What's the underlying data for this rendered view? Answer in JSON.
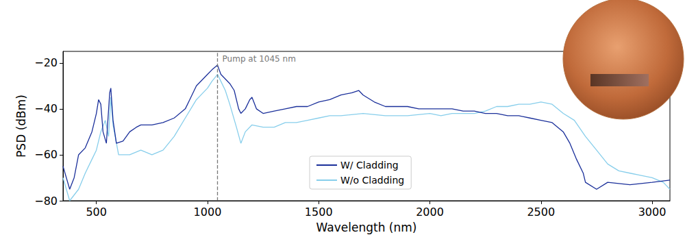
{
  "chart_data": {
    "type": "line",
    "x_label": "Wavelength (nm)",
    "y_label": "PSD (dBm)",
    "xlim": [
      350,
      3080
    ],
    "xticks": [
      500,
      1000,
      1500,
      2000,
      2500,
      3000
    ],
    "ylim": [
      -80,
      -15
    ],
    "yticks": [
      -80,
      -60,
      -40,
      -20
    ],
    "grid": false,
    "legend": "lower center",
    "annotations": [
      {
        "x": 1045,
        "text": "Pump at 1045 nm",
        "line_style": "dashed",
        "color": "#777777"
      }
    ],
    "series": [
      {
        "name": "W/ Cladding",
        "color": "#1a2f9a",
        "x": [
          350,
          380,
          400,
          420,
          450,
          480,
          500,
          510,
          520,
          530,
          545,
          560,
          565,
          575,
          590,
          620,
          650,
          680,
          700,
          750,
          800,
          850,
          900,
          920,
          950,
          980,
          1000,
          1020,
          1045,
          1060,
          1080,
          1100,
          1120,
          1140,
          1150,
          1170,
          1190,
          1200,
          1220,
          1250,
          1300,
          1350,
          1400,
          1450,
          1500,
          1550,
          1600,
          1650,
          1680,
          1700,
          1750,
          1800,
          1850,
          1900,
          1950,
          2000,
          2050,
          2100,
          2150,
          2200,
          2250,
          2300,
          2350,
          2400,
          2450,
          2500,
          2550,
          2600,
          2630,
          2660,
          2690,
          2700,
          2750,
          2800,
          2900,
          3000,
          3080
        ],
        "values": [
          -65,
          -75,
          -70,
          -60,
          -57,
          -50,
          -42,
          -36,
          -38,
          -50,
          -55,
          -33,
          -31,
          -45,
          -55,
          -54,
          -50,
          -48,
          -47,
          -47,
          -46,
          -44,
          -40,
          -36,
          -30,
          -27,
          -25,
          -23,
          -21,
          -25,
          -27,
          -29,
          -32,
          -40,
          -42,
          -40,
          -36,
          -35,
          -40,
          -42,
          -41,
          -40,
          -39,
          -39,
          -37,
          -36,
          -34,
          -33,
          -32,
          -34,
          -37,
          -39,
          -39,
          -39,
          -40,
          -40,
          -40,
          -40,
          -41,
          -41,
          -42,
          -42,
          -43,
          -43,
          -44,
          -45,
          -46,
          -50,
          -55,
          -62,
          -68,
          -72,
          -75,
          -72,
          -73,
          -72,
          -71
        ]
      },
      {
        "name": "W/o Cladding",
        "color": "#87ceeb",
        "x": [
          350,
          380,
          420,
          450,
          480,
          500,
          520,
          540,
          555,
          565,
          575,
          600,
          650,
          700,
          750,
          800,
          850,
          900,
          950,
          980,
          1000,
          1020,
          1045,
          1060,
          1080,
          1100,
          1130,
          1150,
          1170,
          1200,
          1250,
          1300,
          1350,
          1400,
          1450,
          1500,
          1550,
          1600,
          1700,
          1800,
          1900,
          2000,
          2050,
          2100,
          2200,
          2250,
          2300,
          2350,
          2400,
          2450,
          2500,
          2550,
          2600,
          2650,
          2700,
          2750,
          2800,
          2850,
          2900,
          3000,
          3050,
          3080
        ],
        "values": [
          -70,
          -80,
          -75,
          -68,
          -62,
          -58,
          -50,
          -45,
          -52,
          -35,
          -47,
          -60,
          -60,
          -58,
          -60,
          -58,
          -52,
          -44,
          -36,
          -33,
          -31,
          -28,
          -25,
          -28,
          -32,
          -38,
          -48,
          -55,
          -50,
          -47,
          -48,
          -48,
          -46,
          -46,
          -45,
          -44,
          -43,
          -43,
          -42,
          -43,
          -43,
          -42,
          -43,
          -42,
          -42,
          -41,
          -39,
          -39,
          -38,
          -38,
          -37,
          -38,
          -42,
          -45,
          -52,
          -58,
          -64,
          -67,
          -68,
          -70,
          -72,
          -75
        ]
      }
    ]
  }
}
